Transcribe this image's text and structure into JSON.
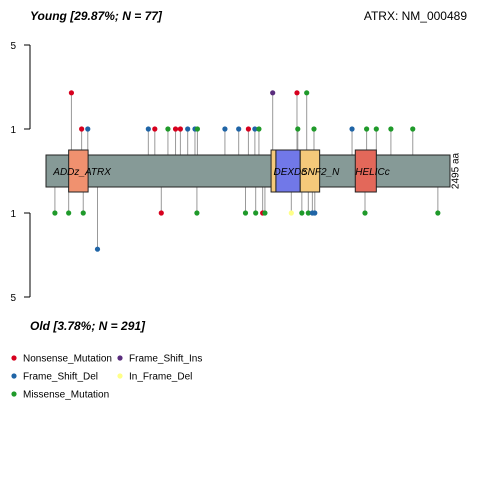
{
  "chart_data": {
    "type": "lollipop",
    "title_top": "Young [29.87%; N = 77]",
    "title_bottom": "Old [3.78%; N = 291]",
    "gene_label": "ATRX: NM_000489",
    "protein_length": 2495,
    "length_label": "2495 aa",
    "y_scale": "log",
    "top_axis": {
      "ticks": [
        1,
        5
      ],
      "tick_labels": [
        "1",
        "5"
      ]
    },
    "bottom_axis": {
      "ticks": [
        1,
        5
      ],
      "tick_labels": [
        "1",
        "5"
      ]
    },
    "domains": [
      {
        "name": "ADDz_ATRX",
        "start": 140,
        "end": 260,
        "color": "#f0916f"
      },
      {
        "name": "DEXDc",
        "start": 1390,
        "end": 1420,
        "color": "#f5c97a"
      },
      {
        "name": "SNF2_N",
        "start": 1420,
        "end": 1570,
        "color": "#7178e8"
      },
      {
        "name": "",
        "start": 1570,
        "end": 1690,
        "color": "#f5c97a"
      },
      {
        "name": "HELICc",
        "start": 1910,
        "end": 2040,
        "color": "#e3685a"
      }
    ],
    "domain_labels": [
      {
        "text": "ADDz_ATRX",
        "pos": 45
      },
      {
        "text": "DEXDc",
        "pos": 1405
      },
      {
        "text": "SNF2_N",
        "pos": 1575
      },
      {
        "text": "HELICc",
        "pos": 1910
      }
    ],
    "mutation_colors": {
      "Nonsense_Mutation": "#d7001e",
      "Frame_Shift_Del": "#1f64a6",
      "Missense_Mutation": "#1f9a2a",
      "Frame_Shift_Ins": "#5a2d7d",
      "In_Frame_Del": "#ffff88"
    },
    "legend": [
      {
        "label": "Nonsense_Mutation",
        "type": "Nonsense_Mutation"
      },
      {
        "label": "Frame_Shift_Ins",
        "type": "Frame_Shift_Ins"
      },
      {
        "label": "Frame_Shift_Del",
        "type": "Frame_Shift_Del"
      },
      {
        "label": "In_Frame_Del",
        "type": "In_Frame_Del"
      },
      {
        "label": "Missense_Mutation",
        "type": "Missense_Mutation"
      }
    ],
    "top_mutations": [
      {
        "pos": 157,
        "count": 2,
        "type": "Nonsense_Mutation"
      },
      {
        "pos": 220,
        "count": 1,
        "type": "Nonsense_Mutation"
      },
      {
        "pos": 258,
        "count": 1,
        "type": "Frame_Shift_Del"
      },
      {
        "pos": 632,
        "count": 1,
        "type": "Frame_Shift_Del"
      },
      {
        "pos": 672,
        "count": 1,
        "type": "Nonsense_Mutation"
      },
      {
        "pos": 753,
        "count": 1,
        "type": "Missense_Mutation"
      },
      {
        "pos": 800,
        "count": 1,
        "type": "Nonsense_Mutation"
      },
      {
        "pos": 830,
        "count": 1,
        "type": "Nonsense_Mutation"
      },
      {
        "pos": 875,
        "count": 1,
        "type": "Frame_Shift_Del"
      },
      {
        "pos": 920,
        "count": 1,
        "type": "Frame_Shift_Del"
      },
      {
        "pos": 935,
        "count": 1,
        "type": "Missense_Mutation"
      },
      {
        "pos": 1105,
        "count": 1,
        "type": "Frame_Shift_Del"
      },
      {
        "pos": 1190,
        "count": 1,
        "type": "Frame_Shift_Del"
      },
      {
        "pos": 1250,
        "count": 1,
        "type": "Nonsense_Mutation"
      },
      {
        "pos": 1290,
        "count": 1,
        "type": "Frame_Shift_Del"
      },
      {
        "pos": 1315,
        "count": 1,
        "type": "Missense_Mutation"
      },
      {
        "pos": 1400,
        "count": 2,
        "type": "Frame_Shift_Ins"
      },
      {
        "pos": 1550,
        "count": 2,
        "type": "Nonsense_Mutation"
      },
      {
        "pos": 1555,
        "count": 1,
        "type": "Missense_Mutation"
      },
      {
        "pos": 1610,
        "count": 2,
        "type": "Missense_Mutation"
      },
      {
        "pos": 1655,
        "count": 1,
        "type": "Missense_Mutation"
      },
      {
        "pos": 1890,
        "count": 1,
        "type": "Frame_Shift_Del"
      },
      {
        "pos": 1980,
        "count": 1,
        "type": "Missense_Mutation"
      },
      {
        "pos": 2040,
        "count": 1,
        "type": "Missense_Mutation"
      },
      {
        "pos": 2130,
        "count": 1,
        "type": "Missense_Mutation"
      },
      {
        "pos": 2265,
        "count": 1,
        "type": "Missense_Mutation"
      }
    ],
    "bottom_mutations": [
      {
        "pos": 55,
        "count": 1,
        "type": "Missense_Mutation"
      },
      {
        "pos": 140,
        "count": 1,
        "type": "Missense_Mutation"
      },
      {
        "pos": 230,
        "count": 1,
        "type": "Missense_Mutation"
      },
      {
        "pos": 318,
        "count": 2,
        "type": "Frame_Shift_Del"
      },
      {
        "pos": 712,
        "count": 1,
        "type": "Nonsense_Mutation"
      },
      {
        "pos": 932,
        "count": 1,
        "type": "Missense_Mutation"
      },
      {
        "pos": 1232,
        "count": 1,
        "type": "Missense_Mutation"
      },
      {
        "pos": 1295,
        "count": 1,
        "type": "Missense_Mutation"
      },
      {
        "pos": 1338,
        "count": 1,
        "type": "Nonsense_Mutation"
      },
      {
        "pos": 1352,
        "count": 1,
        "type": "Missense_Mutation"
      },
      {
        "pos": 1515,
        "count": 1,
        "type": "In_Frame_Del"
      },
      {
        "pos": 1580,
        "count": 1,
        "type": "Missense_Mutation"
      },
      {
        "pos": 1620,
        "count": 1,
        "type": "Missense_Mutation"
      },
      {
        "pos": 1645,
        "count": 1,
        "type": "Frame_Shift_Del"
      },
      {
        "pos": 1660,
        "count": 1,
        "type": "Frame_Shift_Del"
      },
      {
        "pos": 1970,
        "count": 1,
        "type": "Missense_Mutation"
      },
      {
        "pos": 2420,
        "count": 1,
        "type": "Missense_Mutation"
      }
    ]
  }
}
